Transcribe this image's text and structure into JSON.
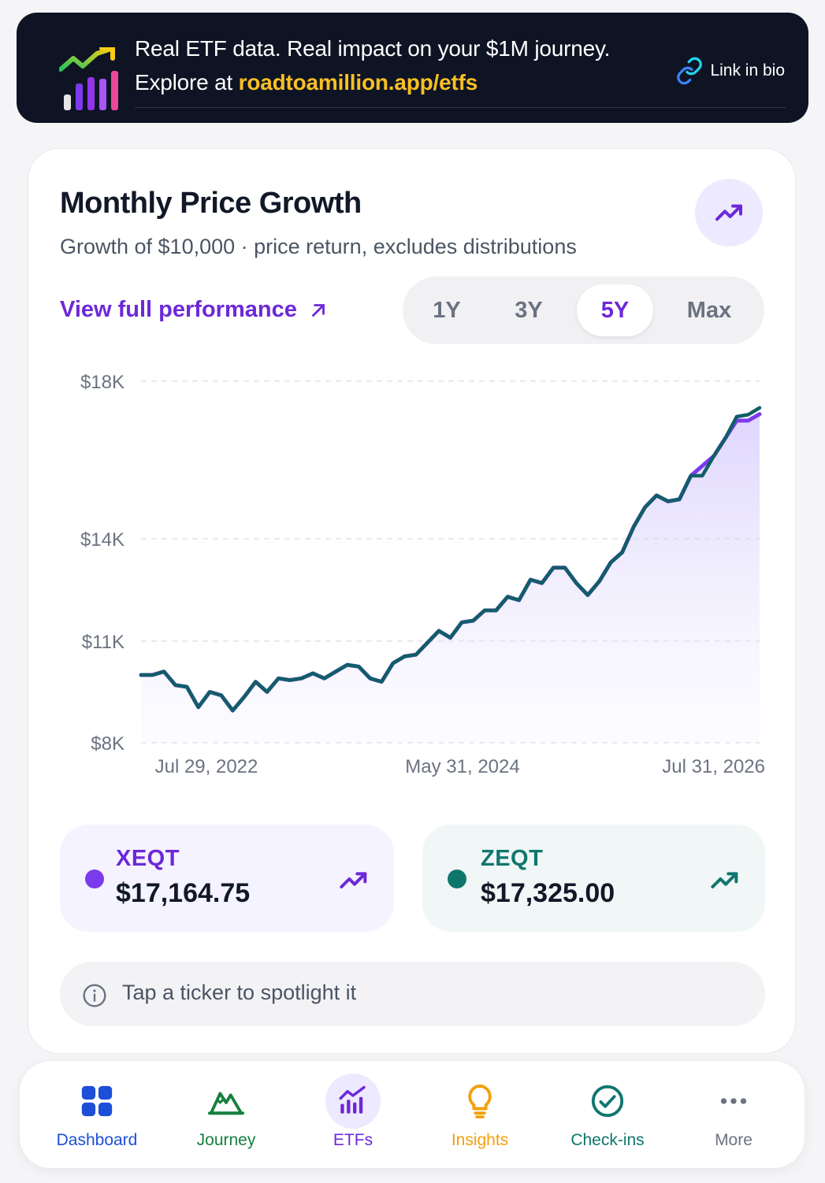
{
  "banner": {
    "line1": "Real ETF data. Real impact on your $1M journey.",
    "line2_prefix": "Explore at ",
    "line2_url": "roadtoamillion.app/etfs",
    "link_label": "Link in bio",
    "logo_icon": "growth-bars-logo",
    "link_icon": "link-icon"
  },
  "card": {
    "title": "Monthly Price Growth",
    "subtitle": "Growth of $10,000 · price return, excludes distributions",
    "trend_icon": "trending-up-icon",
    "view_link": "View full performance",
    "view_link_icon": "arrow-up-right-icon",
    "ranges": [
      "1Y",
      "3Y",
      "5Y",
      "Max"
    ],
    "active_range": "5Y"
  },
  "chart_data": {
    "type": "line",
    "title": "",
    "xlabel": "",
    "ylabel": "",
    "y_ticks": [
      "$18K",
      "$14K",
      "$11K",
      "$8K"
    ],
    "x_ticks": [
      "Jul 29, 2022",
      "May 31, 2024",
      "Jul 31, 2026"
    ],
    "grid": "horizontal dashed",
    "series": [
      {
        "name": "XEQT",
        "color": "#7c3aed",
        "area_fill": true,
        "values": [
          10000,
          10000,
          10100,
          9700,
          9650,
          9050,
          9500,
          9400,
          8950,
          9350,
          9800,
          9500,
          9900,
          9850,
          9900,
          10050,
          9900,
          10100,
          10300,
          10250,
          9900,
          9800,
          10350,
          10550,
          10600,
          10950,
          11300,
          11100,
          11550,
          11600,
          11900,
          11900,
          12300,
          12200,
          12800,
          12700,
          13150,
          13150,
          12700,
          12350,
          12750,
          13300,
          13600,
          14300,
          14800,
          15100,
          14950,
          15000,
          15600,
          15850,
          16100,
          16550,
          17000,
          17000,
          17164.75
        ]
      },
      {
        "name": "ZEQT",
        "color": "#0f766e",
        "area_fill": false,
        "values": [
          10000,
          10000,
          10100,
          9700,
          9650,
          9050,
          9500,
          9400,
          8950,
          9350,
          9800,
          9500,
          9900,
          9850,
          9900,
          10050,
          9900,
          10100,
          10300,
          10250,
          9900,
          9800,
          10350,
          10550,
          10600,
          10950,
          11300,
          11100,
          11550,
          11600,
          11900,
          11900,
          12300,
          12200,
          12800,
          12700,
          13150,
          13150,
          12700,
          12350,
          12750,
          13300,
          13600,
          14300,
          14800,
          15100,
          14950,
          15000,
          15600,
          15600,
          16100,
          16550,
          17100,
          17150,
          17325
        ]
      }
    ]
  },
  "tickers": [
    {
      "symbol": "XEQT",
      "value": "$17,164.75",
      "color": "#7c3aed",
      "name_color": "#6d28d9",
      "bg": "#f5f3ff",
      "icon": "trending-up-icon"
    },
    {
      "symbol": "ZEQT",
      "value": "$17,325.00",
      "color": "#0f766e",
      "name_color": "#0f766e",
      "bg": "#f0f7f6",
      "icon": "trending-up-icon"
    }
  ],
  "hint": {
    "text": "Tap a ticker to spotlight it",
    "icon": "info-icon"
  },
  "nav": [
    {
      "label": "Dashboard",
      "icon": "grid-icon",
      "color": "#1d4ed8",
      "active": false
    },
    {
      "label": "Journey",
      "icon": "mountain-icon",
      "color": "#15803d",
      "active": false
    },
    {
      "label": "ETFs",
      "icon": "bar-chart-icon",
      "color": "#6d28d9",
      "active": true
    },
    {
      "label": "Insights",
      "icon": "lightbulb-icon",
      "color": "#f59e0b",
      "active": false
    },
    {
      "label": "Check-ins",
      "icon": "check-circle-icon",
      "color": "#0f766e",
      "active": false
    },
    {
      "label": "More",
      "icon": "more-dots-icon",
      "color": "#6b7280",
      "active": false
    }
  ]
}
